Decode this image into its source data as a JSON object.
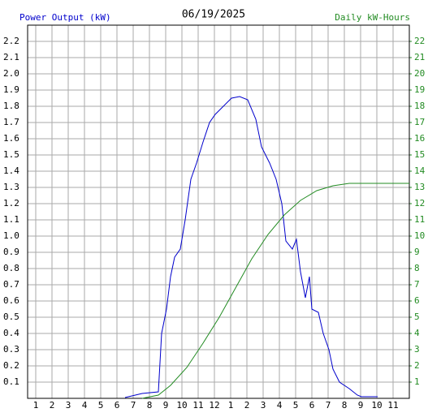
{
  "chart_data": {
    "type": "line",
    "title": "06/19/2025",
    "xlim": [
      0.5,
      24
    ],
    "xticks": [
      1,
      2,
      3,
      4,
      5,
      6,
      7,
      8,
      9,
      10,
      11,
      12,
      {
        "value": 13,
        "label": "1"
      },
      {
        "value": 14,
        "label": "2"
      },
      {
        "value": 15,
        "label": "3"
      },
      {
        "value": 16,
        "label": "4"
      },
      {
        "value": 17,
        "label": "5"
      },
      {
        "value": 18,
        "label": "6"
      },
      {
        "value": 19,
        "label": "7"
      },
      {
        "value": 20,
        "label": "8"
      },
      {
        "value": 21,
        "label": "9"
      },
      {
        "value": 22,
        "label": "10"
      },
      {
        "value": 23,
        "label": "11"
      }
    ],
    "ylim": [
      0,
      2.3
    ],
    "yticks": [
      0.1,
      0.2,
      0.3,
      0.4,
      0.5,
      0.6,
      0.7,
      0.8,
      0.9,
      {
        "value": 1,
        "label": "1.0"
      },
      1.1,
      1.2,
      1.3,
      1.4,
      1.5,
      1.6,
      1.7,
      1.8,
      1.9,
      {
        "value": 2,
        "label": "2.0"
      },
      2.1,
      2.2
    ],
    "y2lim": [
      0,
      23
    ],
    "y2ticks": [
      1,
      2,
      3,
      4,
      5,
      6,
      7,
      8,
      9,
      10,
      11,
      12,
      13,
      14,
      15,
      16,
      17,
      18,
      19,
      20,
      21,
      22
    ],
    "grid": true,
    "series": [
      {
        "name": "Power Output (kW)",
        "color": "#0000cc",
        "x": [
          6.5,
          7.55,
          8.55,
          8.75,
          9.05,
          9.3,
          9.55,
          9.9,
          10.2,
          10.55,
          10.9,
          11.3,
          11.7,
          12.05,
          12.55,
          13.05,
          13.55,
          14.05,
          14.55,
          14.9,
          15.4,
          15.8,
          16.15,
          16.4,
          16.8,
          17.05,
          17.3,
          17.6,
          17.85,
          18.0,
          18.4,
          18.7,
          19.05,
          19.3,
          19.7,
          20.3,
          20.8,
          21.05,
          22.05
        ],
        "values": [
          0.005,
          0.03,
          0.04,
          0.4,
          0.55,
          0.75,
          0.87,
          0.92,
          1.1,
          1.35,
          1.45,
          1.58,
          1.7,
          1.75,
          1.8,
          1.85,
          1.86,
          1.84,
          1.72,
          1.55,
          1.45,
          1.35,
          1.2,
          0.97,
          0.92,
          0.98,
          0.78,
          0.62,
          0.75,
          0.55,
          0.53,
          0.4,
          0.3,
          0.18,
          0.1,
          0.06,
          0.02,
          0.01,
          0.01
        ]
      },
      {
        "name": "Daily kW-Hours",
        "color": "#228b22",
        "axis": "y2",
        "x": [
          7.55,
          8.55,
          9.3,
          10.3,
          11.3,
          12.3,
          13.3,
          14.3,
          15.3,
          16.3,
          17.3,
          18.3,
          19.3,
          20.3,
          24
        ],
        "values": [
          0,
          0.2,
          0.8,
          1.9,
          3.4,
          5.0,
          6.8,
          8.6,
          10.1,
          11.3,
          12.2,
          12.8,
          13.1,
          13.25,
          13.25
        ]
      }
    ]
  }
}
